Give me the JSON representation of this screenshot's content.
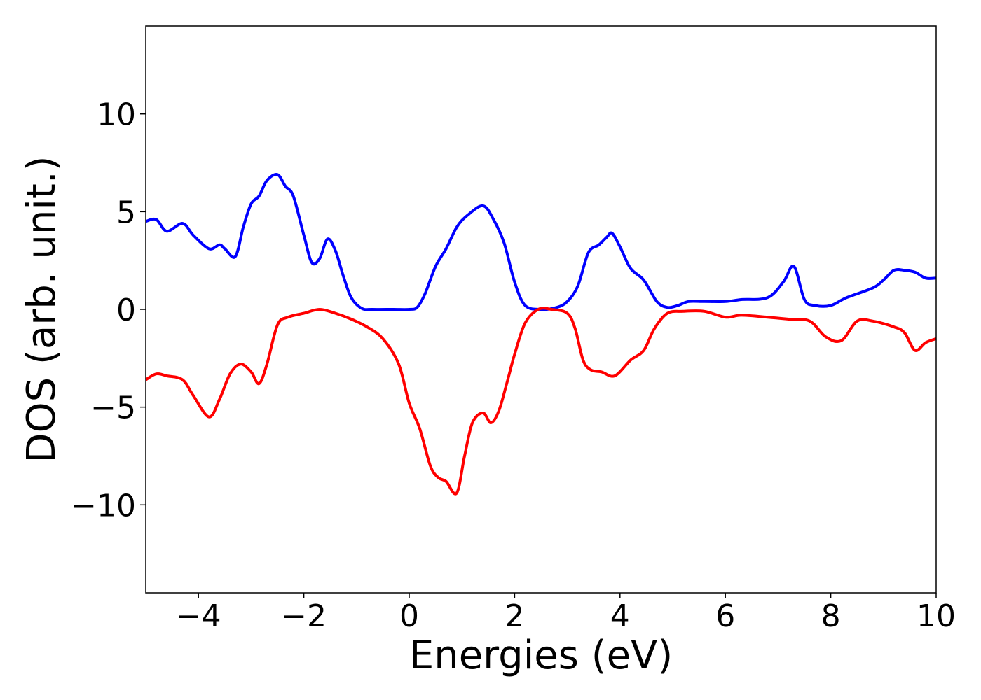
{
  "chart_data": {
    "type": "line",
    "title": "",
    "xlabel": "Energies (eV)",
    "ylabel": "DOS (arb. unit.)",
    "xlim": [
      -5,
      10
    ],
    "ylim": [
      -14.5,
      14.5
    ],
    "grid": false,
    "legend": "none",
    "xticks": [
      {
        "value": -4,
        "label": "−4"
      },
      {
        "value": -2,
        "label": "−2"
      },
      {
        "value": 0,
        "label": "0"
      },
      {
        "value": 2,
        "label": "2"
      },
      {
        "value": 4,
        "label": "4"
      },
      {
        "value": 6,
        "label": "6"
      },
      {
        "value": 8,
        "label": "8"
      },
      {
        "value": 10,
        "label": "10"
      }
    ],
    "yticks": [
      {
        "value": -10,
        "label": "−10"
      },
      {
        "value": -5,
        "label": "−5"
      },
      {
        "value": 0,
        "label": "0"
      },
      {
        "value": 5,
        "label": "5"
      },
      {
        "value": 10,
        "label": "10"
      }
    ],
    "series": [
      {
        "color": "#0000ff",
        "x": [
          -5.0,
          -4.8,
          -4.6,
          -4.3,
          -4.1,
          -3.8,
          -3.6,
          -3.5,
          -3.3,
          -3.15,
          -3.0,
          -2.85,
          -2.7,
          -2.5,
          -2.35,
          -2.2,
          -2.0,
          -1.85,
          -1.7,
          -1.55,
          -1.4,
          -1.25,
          -1.1,
          -0.9,
          -0.7,
          -0.3,
          0.0,
          0.15,
          0.3,
          0.5,
          0.7,
          0.9,
          1.1,
          1.4,
          1.6,
          1.8,
          2.0,
          2.2,
          2.5,
          2.8,
          3.0,
          3.2,
          3.4,
          3.6,
          3.75,
          3.85,
          4.0,
          4.2,
          4.45,
          4.7,
          4.9,
          5.1,
          5.3,
          5.6,
          6.0,
          6.3,
          6.8,
          7.1,
          7.3,
          7.5,
          7.7,
          8.0,
          8.3,
          8.8,
          9.0,
          9.2,
          9.4,
          9.6,
          9.8,
          10.0
        ],
        "y": [
          4.5,
          4.6,
          4.0,
          4.4,
          3.8,
          3.1,
          3.3,
          3.1,
          2.7,
          4.2,
          5.4,
          5.8,
          6.6,
          6.9,
          6.3,
          5.8,
          3.8,
          2.4,
          2.6,
          3.6,
          3.0,
          1.7,
          0.6,
          0.05,
          0.0,
          0.0,
          0.0,
          0.1,
          0.8,
          2.2,
          3.1,
          4.2,
          4.8,
          5.3,
          4.6,
          3.4,
          1.4,
          0.2,
          0.0,
          0.1,
          0.4,
          1.2,
          2.9,
          3.3,
          3.7,
          3.9,
          3.2,
          2.1,
          1.5,
          0.4,
          0.1,
          0.2,
          0.4,
          0.4,
          0.4,
          0.5,
          0.6,
          1.4,
          2.2,
          0.5,
          0.2,
          0.2,
          0.6,
          1.1,
          1.5,
          2.0,
          2.0,
          1.9,
          1.6,
          1.6
        ]
      },
      {
        "color": "#ff0000",
        "x": [
          -5.0,
          -4.8,
          -4.6,
          -4.3,
          -4.1,
          -3.8,
          -3.6,
          -3.4,
          -3.2,
          -3.0,
          -2.85,
          -2.7,
          -2.5,
          -2.3,
          -2.0,
          -1.7,
          -1.4,
          -1.1,
          -0.8,
          -0.5,
          -0.2,
          0.0,
          0.2,
          0.4,
          0.55,
          0.7,
          0.9,
          1.05,
          1.2,
          1.4,
          1.55,
          1.7,
          1.85,
          2.0,
          2.2,
          2.45,
          2.7,
          3.0,
          3.15,
          3.3,
          3.45,
          3.65,
          3.9,
          4.2,
          4.45,
          4.65,
          4.9,
          5.2,
          5.6,
          6.0,
          6.3,
          6.8,
          7.2,
          7.6,
          7.9,
          8.2,
          8.5,
          8.8,
          9.2,
          9.4,
          9.6,
          9.8,
          10.0
        ],
        "y": [
          -3.6,
          -3.3,
          -3.4,
          -3.6,
          -4.4,
          -5.5,
          -4.6,
          -3.3,
          -2.8,
          -3.2,
          -3.8,
          -2.8,
          -0.8,
          -0.4,
          -0.2,
          0.0,
          -0.2,
          -0.5,
          -0.9,
          -1.5,
          -2.8,
          -4.8,
          -6.1,
          -8.0,
          -8.6,
          -8.8,
          -9.4,
          -7.5,
          -5.8,
          -5.3,
          -5.8,
          -5.2,
          -3.8,
          -2.3,
          -0.7,
          0.0,
          0.0,
          -0.2,
          -1.0,
          -2.6,
          -3.1,
          -3.2,
          -3.4,
          -2.6,
          -2.1,
          -1.0,
          -0.2,
          -0.1,
          -0.1,
          -0.4,
          -0.3,
          -0.4,
          -0.5,
          -0.6,
          -1.4,
          -1.6,
          -0.6,
          -0.6,
          -0.9,
          -1.2,
          -2.1,
          -1.7,
          -1.5
        ]
      }
    ]
  }
}
